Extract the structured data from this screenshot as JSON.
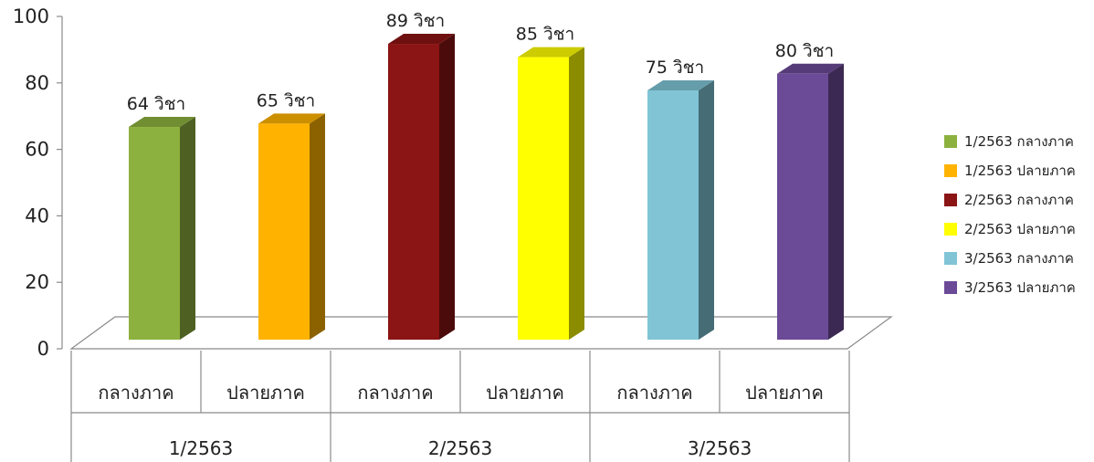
{
  "chart_data": {
    "type": "bar",
    "title": "",
    "xlabel": "",
    "ylabel": "",
    "ylim": [
      0,
      100
    ],
    "yticks": [
      0,
      20,
      40,
      60,
      80,
      100
    ],
    "grid": false,
    "legend_position": "right",
    "groups": [
      "1/2563",
      "2/2563",
      "3/2563"
    ],
    "categories": [
      "กลางภาค",
      "ปลายภาค",
      "กลางภาค",
      "ปลายภาค",
      "กลางภาค",
      "ปลายภาค"
    ],
    "series": [
      {
        "name": "1/2563 กลางภาค",
        "value": 64,
        "label": "64 วิชา",
        "color": "#8DB13E"
      },
      {
        "name": "1/2563 ปลายภาค",
        "value": 65,
        "label": "65 วิชา",
        "color": "#FFB300"
      },
      {
        "name": "2/2563 กลางภาค",
        "value": 89,
        "label": "89 วิชา",
        "color": "#8B1414"
      },
      {
        "name": "2/2563 ปลายภาค",
        "value": 85,
        "label": "85 วิชา",
        "color": "#FFFF00"
      },
      {
        "name": "3/2563 กลางภาค",
        "value": 75,
        "label": "75 วิชา",
        "color": "#80C4D6"
      },
      {
        "name": "3/2563 ปลายภาค",
        "value": 80,
        "label": "80 วิชา",
        "color": "#6B4A97"
      }
    ]
  }
}
